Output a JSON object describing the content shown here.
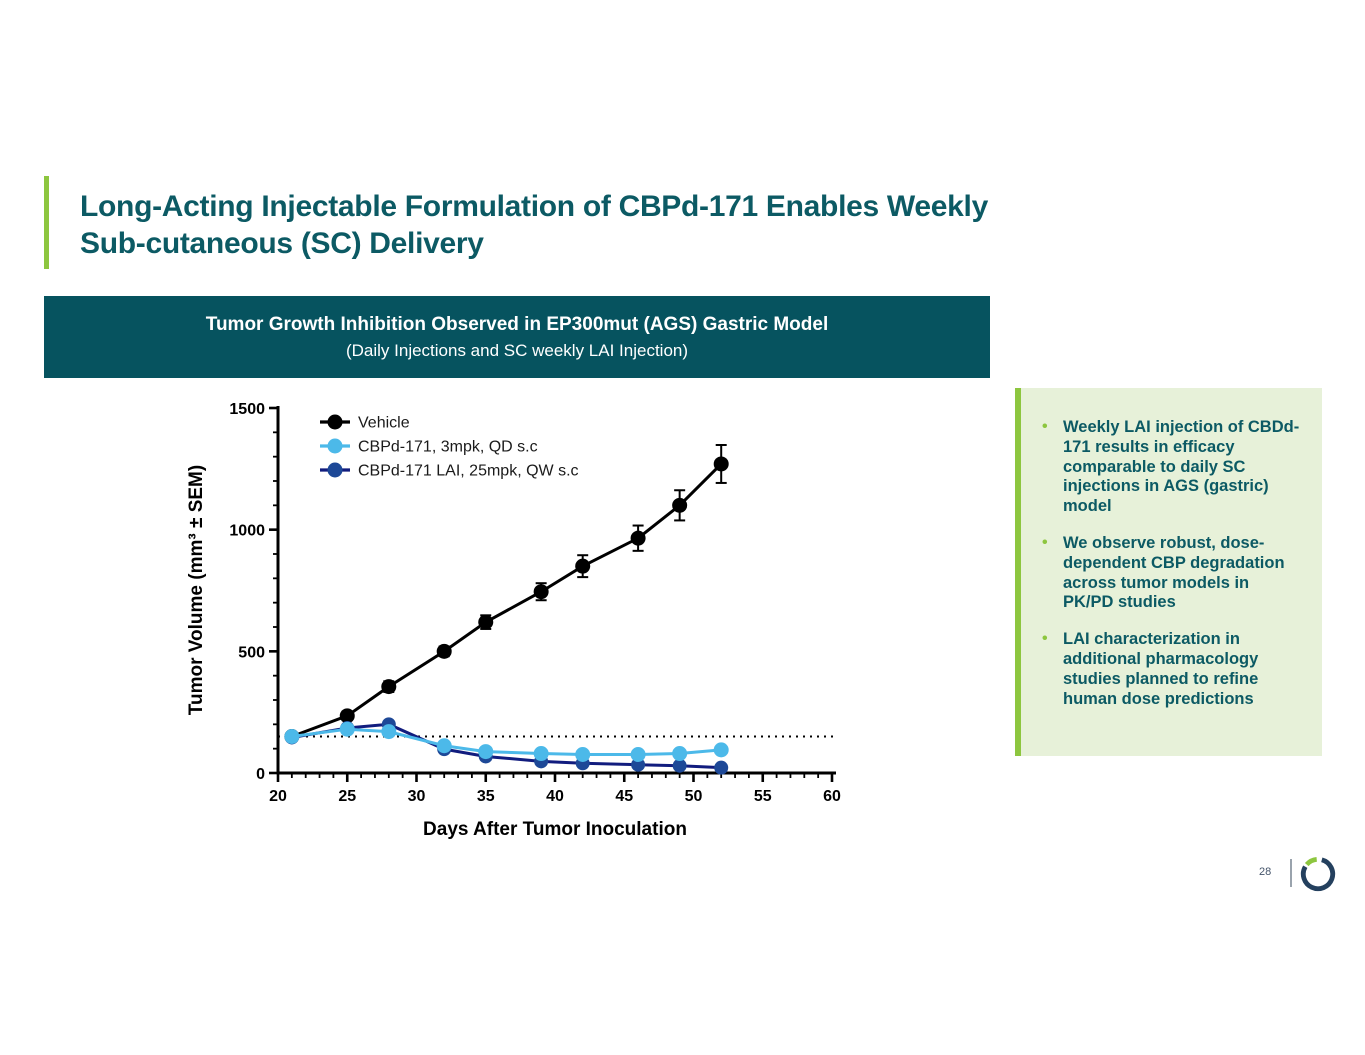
{
  "slide": {
    "title": "Long-Acting Injectable Formulation of CBPd-171 Enables Weekly\nSub-cutaneous (SC) Delivery",
    "title_color": "#0c5a64",
    "accent_color": "#8dc63f"
  },
  "banner": {
    "title": "Tumor Growth Inhibition Observed in EP300mut (AGS) Gastric Model",
    "subtitle": "(Daily Injections and SC weekly LAI Injection)",
    "bg_color": "#06535f"
  },
  "chart_data": {
    "type": "line",
    "title": "",
    "xlabel": "Days After Tumor Inoculation",
    "ylabel": "Tumor Volume (mm³ ± SEM)",
    "xlim": [
      20,
      60
    ],
    "ylim": [
      0,
      1500
    ],
    "x_major_ticks": [
      20,
      25,
      30,
      35,
      40,
      45,
      50,
      55,
      60
    ],
    "x_minor_step": 1,
    "y_major_ticks": [
      0,
      500,
      1000,
      1500
    ],
    "y_minor_step": 100,
    "grid": false,
    "legend_position": "top-left",
    "baseline_dotted_y": 150,
    "x": [
      21,
      25,
      28,
      32,
      35,
      39,
      42,
      46,
      49,
      52
    ],
    "series": [
      {
        "name": "Vehicle",
        "color": "#000000",
        "values": [
          150,
          235,
          355,
          500,
          620,
          745,
          850,
          965,
          1100,
          1270
        ],
        "sem": [
          12,
          18,
          22,
          20,
          28,
          35,
          45,
          52,
          62,
          78
        ]
      },
      {
        "name": "CBPd-171, 3mpk, QD s.c",
        "color": "#4cb9e9",
        "values": [
          150,
          180,
          170,
          112,
          88,
          80,
          76,
          76,
          80,
          95
        ],
        "sem": [
          8,
          10,
          10,
          8,
          6,
          6,
          6,
          6,
          6,
          8
        ]
      },
      {
        "name": "CBPd-171 LAI, 25mpk, QW s.c",
        "color": "#1d4897",
        "line_color": "#111c7e",
        "values": [
          146,
          185,
          200,
          98,
          68,
          48,
          40,
          34,
          30,
          22
        ],
        "sem": [
          8,
          10,
          10,
          8,
          6,
          6,
          6,
          6,
          6,
          6
        ]
      }
    ],
    "draw_order": [
      0,
      2,
      1
    ]
  },
  "sidebar": {
    "bullets": [
      "Weekly LAI injection of CBDd-171 results in efficacy comparable to daily SC injections in AGS (gastric) model",
      "We observe robust, dose-dependent CBP degradation across tumor models in PK/PD studies",
      "LAI characterization in additional pharmacology studies planned to refine human dose predictions"
    ],
    "bg_color": "#e7f1d9",
    "accent_color": "#8dc63f",
    "text_color": "#0c5a64"
  },
  "footer": {
    "page_number": "28",
    "logo_ring_color": "#24405e",
    "logo_arc_color": "#8dc63f"
  }
}
